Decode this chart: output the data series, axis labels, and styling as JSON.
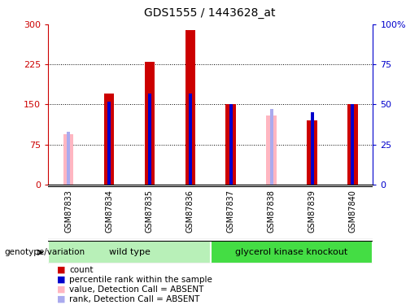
{
  "title": "GDS1555 / 1443628_at",
  "samples": [
    "GSM87833",
    "GSM87834",
    "GSM87835",
    "GSM87836",
    "GSM87837",
    "GSM87838",
    "GSM87839",
    "GSM87840"
  ],
  "count_values": [
    null,
    170,
    230,
    290,
    150,
    null,
    120,
    150
  ],
  "count_absent_values": [
    95,
    null,
    null,
    null,
    null,
    130,
    null,
    null
  ],
  "rank_pct_values": [
    null,
    52,
    57,
    57,
    50,
    null,
    45,
    50
  ],
  "rank_pct_absent": [
    33,
    null,
    null,
    null,
    null,
    47,
    null,
    null
  ],
  "groups": [
    {
      "label": "wild type",
      "start": 0,
      "end": 4,
      "color": "#90ee90"
    },
    {
      "label": "glycerol kinase knockout",
      "start": 4,
      "end": 8,
      "color": "#44dd44"
    }
  ],
  "ylim_left": [
    0,
    300
  ],
  "ylim_right": [
    0,
    100
  ],
  "yticks_left": [
    0,
    75,
    150,
    225,
    300
  ],
  "yticks_right": [
    0,
    25,
    50,
    75,
    100
  ],
  "ytick_labels_left": [
    "0",
    "75",
    "150",
    "225",
    "300"
  ],
  "ytick_labels_right": [
    "0",
    "25",
    "50",
    "75",
    "100%"
  ],
  "grid_values": [
    75,
    150,
    225
  ],
  "bar_color_count": "#cc0000",
  "bar_color_absent": "#ffb6c1",
  "rank_color": "#0000cc",
  "rank_absent_color": "#aaaaee",
  "bar_width": 0.25,
  "rank_bar_width": 0.08,
  "axis_color_left": "#cc0000",
  "axis_color_right": "#0000cc",
  "legend_items": [
    {
      "color": "#cc0000",
      "label": "count"
    },
    {
      "color": "#0000cc",
      "label": "percentile rank within the sample"
    },
    {
      "color": "#ffb6c1",
      "label": "value, Detection Call = ABSENT"
    },
    {
      "color": "#aaaaee",
      "label": "rank, Detection Call = ABSENT"
    }
  ],
  "bg_color": "#ffffff",
  "xtick_bg": "#d0d0d0",
  "group_label_text": "genotype/variation"
}
